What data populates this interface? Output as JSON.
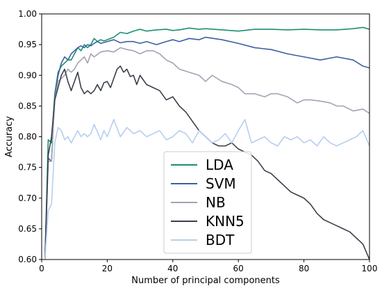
{
  "chart_data": {
    "type": "line",
    "xlabel": "Number of principal components",
    "ylabel": "Accuracy",
    "xlim": [
      0,
      100
    ],
    "ylim": [
      0.6,
      1.0
    ],
    "xticks": [
      0,
      20,
      40,
      60,
      80,
      100
    ],
    "xtick_labels": [
      "0",
      "20",
      "40",
      "60",
      "80",
      "100"
    ],
    "yticks": [
      0.6,
      0.65,
      0.7,
      0.75,
      0.8,
      0.85,
      0.9,
      0.95,
      1.0
    ],
    "ytick_labels": [
      "0.60",
      "0.65",
      "0.70",
      "0.75",
      "0.80",
      "0.85",
      "0.90",
      "0.95",
      "1.00"
    ],
    "grid": false,
    "legend_position": "lower-center",
    "series": [
      {
        "name": "LDA",
        "color": "#1a8f72",
        "x": [
          1,
          2,
          3,
          4,
          5,
          6,
          7,
          8,
          9,
          10,
          11,
          12,
          13,
          14,
          15,
          16,
          17,
          18,
          19,
          20,
          22,
          24,
          26,
          28,
          30,
          32,
          35,
          38,
          40,
          42,
          45,
          48,
          50,
          55,
          60,
          65,
          70,
          75,
          80,
          85,
          90,
          95,
          98,
          100
        ],
        "y": [
          0.6,
          0.795,
          0.79,
          0.87,
          0.905,
          0.915,
          0.92,
          0.925,
          0.925,
          0.935,
          0.945,
          0.94,
          0.95,
          0.945,
          0.95,
          0.96,
          0.955,
          0.958,
          0.956,
          0.958,
          0.962,
          0.97,
          0.968,
          0.972,
          0.975,
          0.972,
          0.974,
          0.975,
          0.973,
          0.974,
          0.977,
          0.975,
          0.976,
          0.974,
          0.972,
          0.975,
          0.975,
          0.974,
          0.975,
          0.974,
          0.974,
          0.976,
          0.978,
          0.975
        ]
      },
      {
        "name": "SVM",
        "color": "#3d5fa0",
        "x": [
          1,
          2,
          3,
          4,
          5,
          6,
          7,
          8,
          9,
          10,
          11,
          12,
          13,
          14,
          15,
          16,
          17,
          18,
          20,
          22,
          24,
          26,
          28,
          30,
          32,
          35,
          38,
          40,
          42,
          45,
          48,
          50,
          55,
          60,
          65,
          70,
          75,
          80,
          85,
          90,
          95,
          98,
          100
        ],
        "y": [
          0.6,
          0.765,
          0.76,
          0.865,
          0.9,
          0.92,
          0.93,
          0.925,
          0.935,
          0.94,
          0.945,
          0.948,
          0.945,
          0.95,
          0.948,
          0.952,
          0.955,
          0.952,
          0.955,
          0.958,
          0.953,
          0.955,
          0.955,
          0.952,
          0.955,
          0.95,
          0.955,
          0.958,
          0.955,
          0.96,
          0.958,
          0.962,
          0.958,
          0.952,
          0.945,
          0.942,
          0.935,
          0.93,
          0.925,
          0.93,
          0.925,
          0.915,
          0.912
        ]
      },
      {
        "name": "NB",
        "color": "#a3a3b3",
        "x": [
          1,
          2,
          3,
          4,
          5,
          6,
          7,
          8,
          9,
          10,
          11,
          12,
          13,
          14,
          15,
          16,
          18,
          20,
          22,
          24,
          26,
          28,
          30,
          32,
          34,
          36,
          38,
          40,
          42,
          45,
          48,
          50,
          52,
          55,
          58,
          60,
          62,
          65,
          68,
          70,
          72,
          75,
          78,
          80,
          82,
          85,
          88,
          90,
          92,
          95,
          98,
          100
        ],
        "y": [
          0.6,
          0.76,
          0.76,
          0.86,
          0.89,
          0.895,
          0.9,
          0.91,
          0.905,
          0.91,
          0.92,
          0.925,
          0.93,
          0.92,
          0.935,
          0.93,
          0.938,
          0.94,
          0.938,
          0.945,
          0.942,
          0.94,
          0.935,
          0.94,
          0.94,
          0.935,
          0.925,
          0.92,
          0.91,
          0.905,
          0.9,
          0.89,
          0.9,
          0.89,
          0.885,
          0.88,
          0.87,
          0.87,
          0.865,
          0.87,
          0.87,
          0.865,
          0.855,
          0.86,
          0.86,
          0.858,
          0.855,
          0.85,
          0.85,
          0.842,
          0.845,
          0.838
        ]
      },
      {
        "name": "KNN5",
        "color": "#3a3f4a",
        "x": [
          1,
          2,
          3,
          4,
          5,
          6,
          7,
          8,
          9,
          10,
          11,
          12,
          13,
          14,
          15,
          16,
          17,
          18,
          19,
          20,
          21,
          22,
          23,
          24,
          25,
          26,
          27,
          28,
          29,
          30,
          32,
          34,
          36,
          38,
          40,
          42,
          44,
          46,
          48,
          50,
          52,
          54,
          56,
          58,
          60,
          62,
          64,
          66,
          68,
          70,
          72,
          74,
          76,
          78,
          80,
          82,
          84,
          86,
          88,
          90,
          92,
          94,
          96,
          98,
          100
        ],
        "y": [
          0.6,
          0.77,
          0.8,
          0.86,
          0.88,
          0.9,
          0.91,
          0.89,
          0.875,
          0.89,
          0.905,
          0.88,
          0.87,
          0.875,
          0.87,
          0.875,
          0.885,
          0.875,
          0.888,
          0.89,
          0.88,
          0.895,
          0.91,
          0.915,
          0.905,
          0.91,
          0.898,
          0.9,
          0.885,
          0.9,
          0.885,
          0.88,
          0.875,
          0.86,
          0.865,
          0.85,
          0.84,
          0.825,
          0.81,
          0.8,
          0.79,
          0.785,
          0.785,
          0.79,
          0.78,
          0.775,
          0.77,
          0.76,
          0.745,
          0.74,
          0.73,
          0.72,
          0.71,
          0.705,
          0.7,
          0.69,
          0.675,
          0.665,
          0.66,
          0.655,
          0.65,
          0.645,
          0.635,
          0.625,
          0.6
        ]
      },
      {
        "name": "BDT",
        "color": "#b5cff0",
        "x": [
          1,
          2,
          3,
          4,
          5,
          6,
          7,
          8,
          9,
          10,
          11,
          12,
          13,
          14,
          15,
          16,
          17,
          18,
          19,
          20,
          22,
          24,
          26,
          28,
          30,
          32,
          34,
          36,
          38,
          40,
          42,
          44,
          46,
          48,
          50,
          52,
          54,
          56,
          58,
          60,
          62,
          64,
          66,
          68,
          70,
          72,
          74,
          76,
          78,
          80,
          82,
          84,
          86,
          88,
          90,
          92,
          94,
          96,
          98,
          100
        ],
        "y": [
          0.6,
          0.68,
          0.69,
          0.79,
          0.815,
          0.81,
          0.795,
          0.8,
          0.79,
          0.8,
          0.81,
          0.8,
          0.805,
          0.8,
          0.805,
          0.82,
          0.808,
          0.795,
          0.81,
          0.8,
          0.828,
          0.8,
          0.815,
          0.805,
          0.81,
          0.8,
          0.805,
          0.81,
          0.795,
          0.8,
          0.81,
          0.805,
          0.79,
          0.81,
          0.8,
          0.79,
          0.795,
          0.805,
          0.79,
          0.81,
          0.828,
          0.79,
          0.795,
          0.8,
          0.79,
          0.785,
          0.8,
          0.795,
          0.8,
          0.79,
          0.795,
          0.785,
          0.8,
          0.79,
          0.785,
          0.79,
          0.795,
          0.8,
          0.81,
          0.785
        ]
      }
    ]
  }
}
